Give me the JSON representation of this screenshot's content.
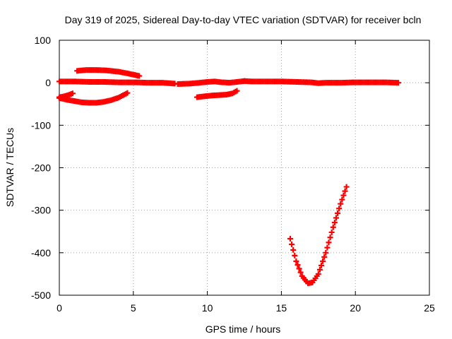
{
  "chart_data": {
    "type": "scatter",
    "title": "Day 319 of 2025, Sidereal Day-to-day VTEC variation (SDTVAR) for receiver bcln",
    "xlabel": "GPS time / hours",
    "ylabel": "SDTVAR / TECUs",
    "xlim": [
      0,
      25
    ],
    "ylim": [
      -500,
      100
    ],
    "xticks": [
      0,
      5,
      10,
      15,
      20,
      25
    ],
    "yticks": [
      -500,
      -400,
      -300,
      -200,
      -100,
      0,
      100
    ],
    "grid": true,
    "marker": "plus",
    "color": "#ff0000",
    "series": [
      {
        "x": [
          0.0,
          1.0,
          2.0,
          3.0,
          4.0,
          5.0,
          6.0,
          7.0,
          7.8
        ],
        "y": [
          3,
          3,
          2,
          2,
          1,
          1,
          0,
          0,
          -2
        ]
      },
      {
        "x": [
          8.0,
          8.8,
          9.5,
          10.0,
          10.5,
          11.0,
          11.5,
          12.0,
          12.5
        ],
        "y": [
          -3,
          -2,
          0,
          2,
          3,
          1,
          0,
          2,
          4
        ]
      },
      {
        "x": [
          12.5,
          13.0,
          14.0,
          15.0,
          16.0,
          17.0,
          17.5,
          18.0,
          19.0,
          20.0,
          21.0,
          22.0,
          22.9
        ],
        "y": [
          4,
          3,
          3,
          3,
          2,
          1,
          -1,
          0,
          0,
          1,
          1,
          1,
          0
        ]
      },
      {
        "x": [
          1.2,
          1.8,
          2.5,
          3.2,
          4.0,
          4.6,
          5.4
        ],
        "y": [
          28,
          30,
          30,
          29,
          26,
          22,
          16
        ]
      },
      {
        "x": [
          0.0,
          0.5,
          1.0,
          1.5,
          2.0,
          2.5,
          3.0,
          3.5,
          4.0,
          4.6
        ],
        "y": [
          -36,
          -40,
          -43,
          -46,
          -47,
          -47,
          -45,
          -41,
          -35,
          -24
        ]
      },
      {
        "x": [
          0.0,
          0.3,
          0.6,
          0.9
        ],
        "y": [
          -34,
          -32,
          -29,
          -25
        ]
      },
      {
        "x": [
          9.3,
          9.8,
          10.3,
          10.8,
          11.3,
          11.7,
          12.0
        ],
        "y": [
          -34,
          -32,
          -30,
          -29,
          -28,
          -25,
          -19
        ]
      },
      {
        "x": [
          15.6,
          16.0,
          16.4,
          16.8,
          17.1,
          17.5,
          18.0,
          18.5,
          19.0,
          19.4
        ],
        "y": [
          -367,
          -420,
          -455,
          -472,
          -470,
          -450,
          -400,
          -340,
          -285,
          -245
        ]
      }
    ]
  }
}
